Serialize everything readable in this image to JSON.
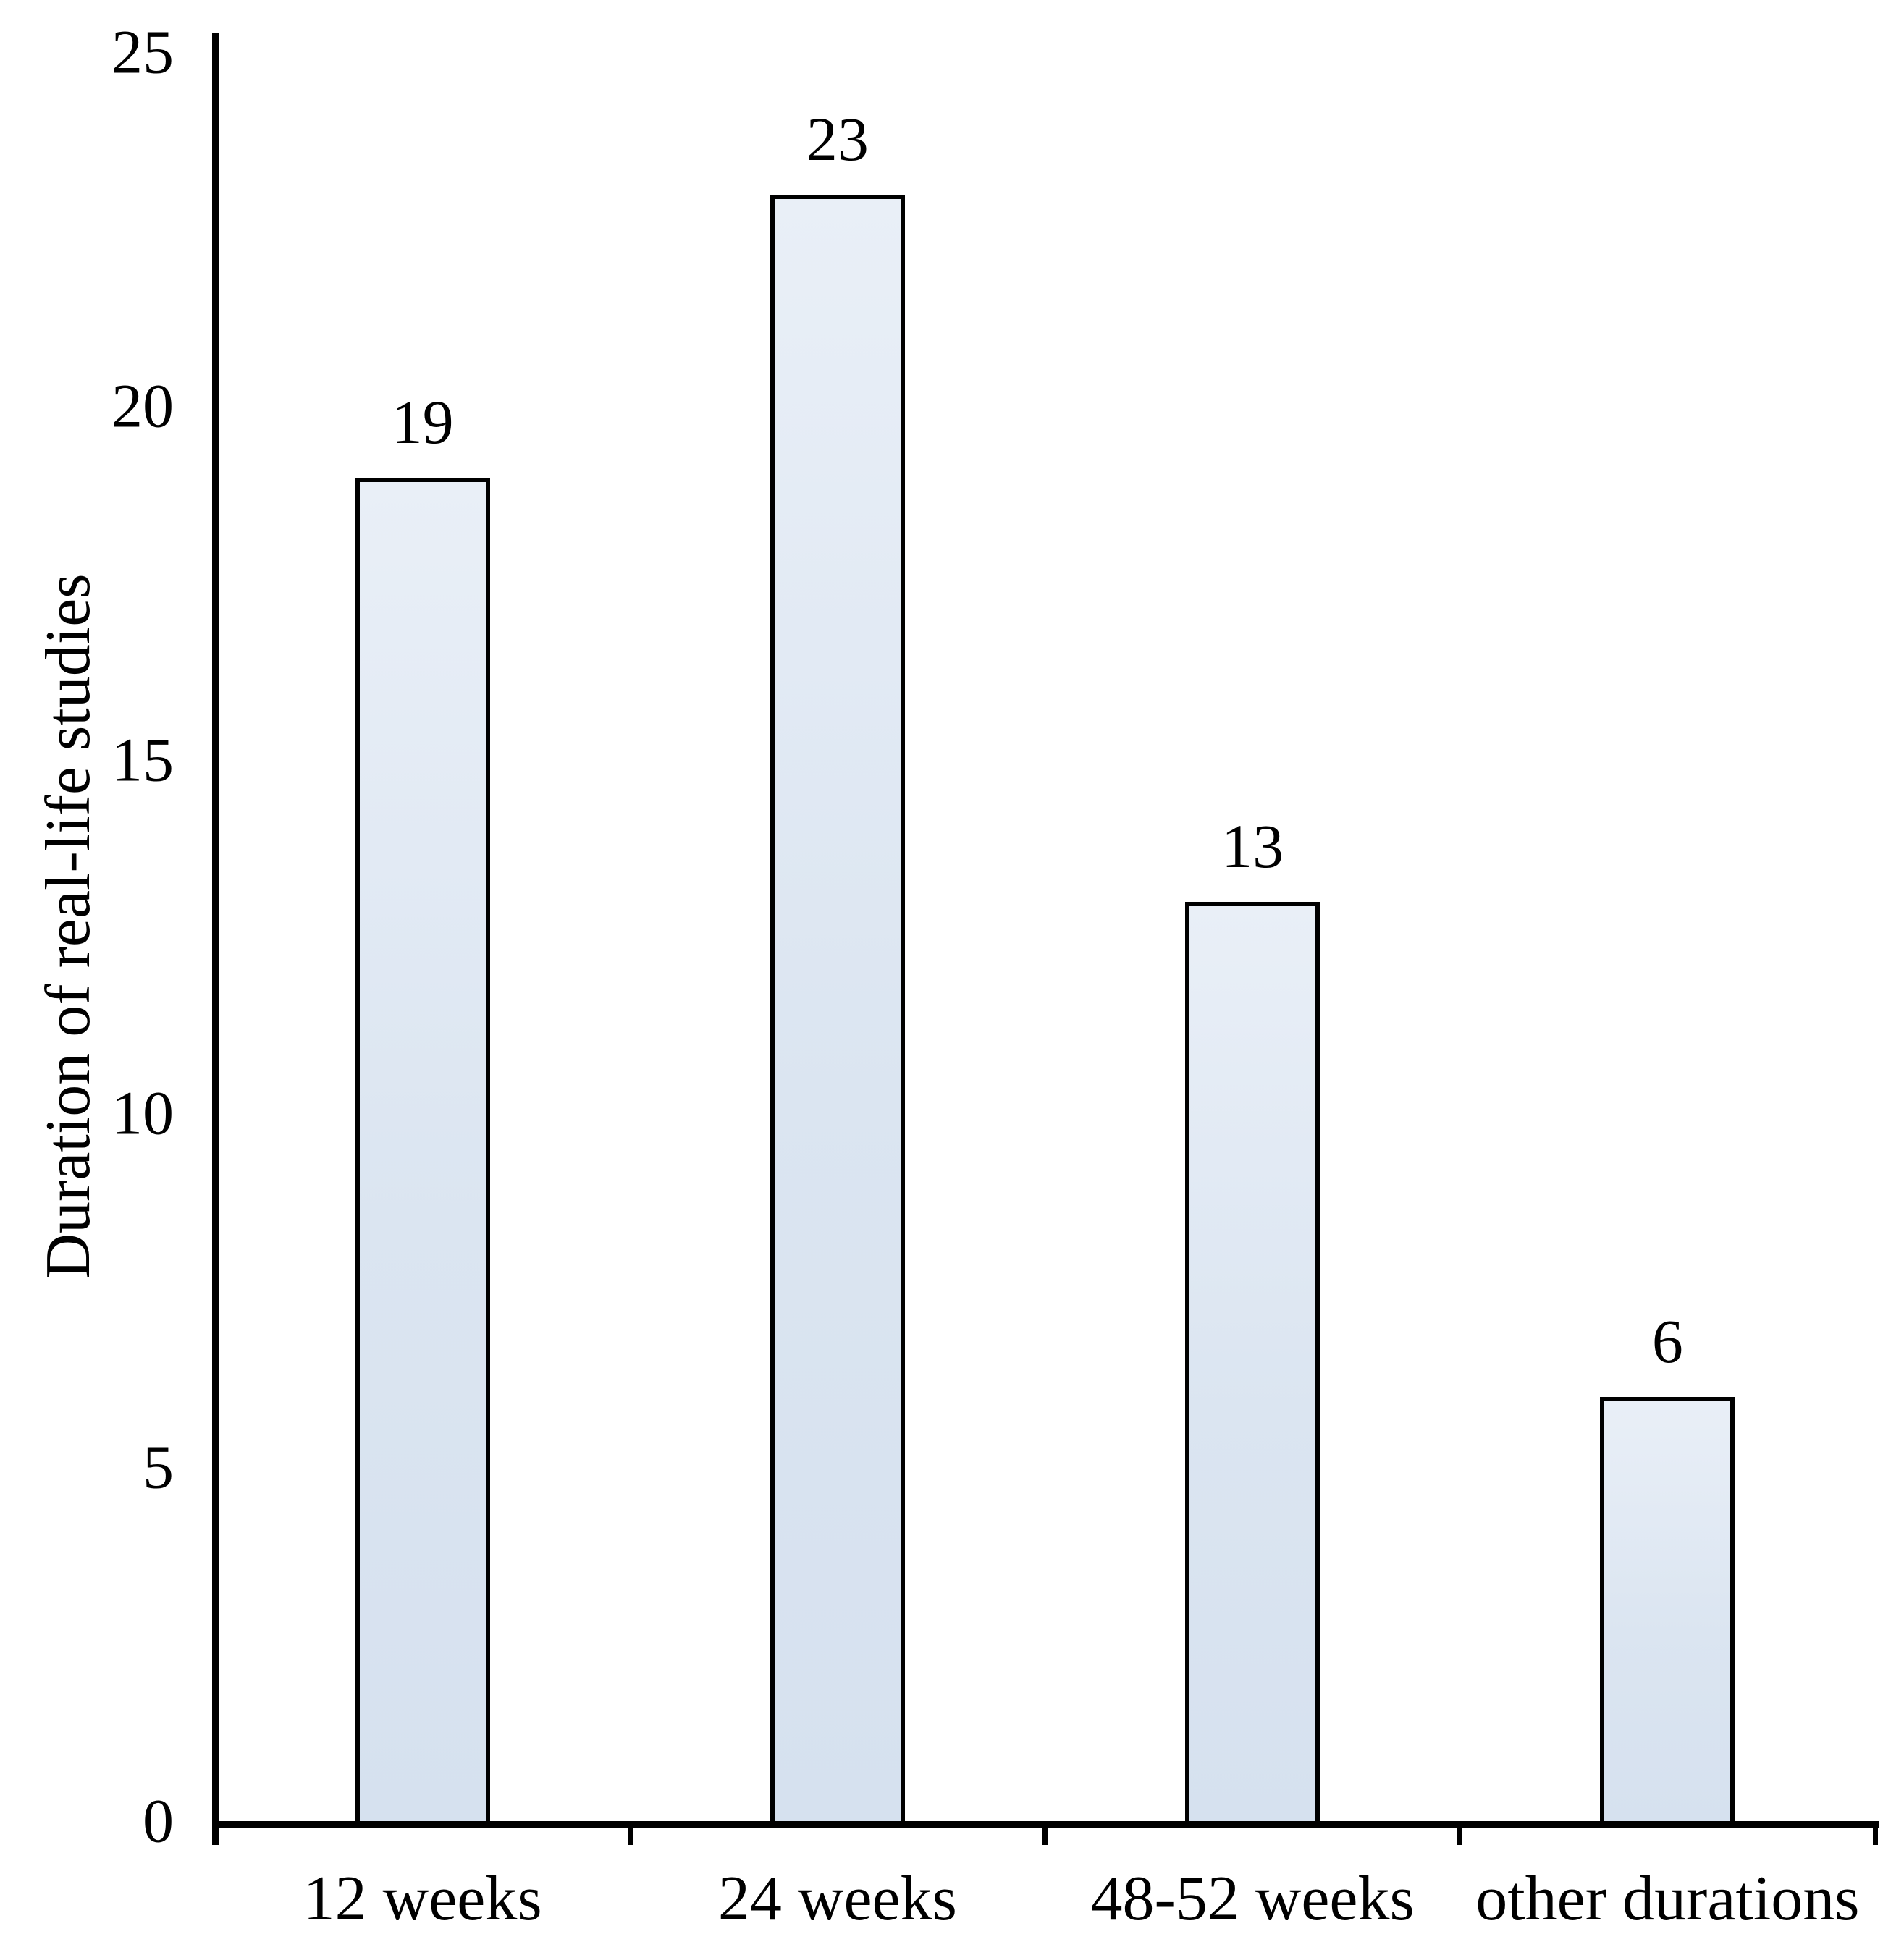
{
  "chart_data": {
    "type": "bar",
    "categories": [
      "12 weeks",
      "24 weeks",
      "48-52 weeks",
      "other durations"
    ],
    "values": [
      19,
      23,
      13,
      6
    ],
    "value_labels": [
      "19",
      "23",
      "13",
      "6"
    ],
    "title": "",
    "xlabel": "",
    "ylabel": "Duration of real-life studies",
    "ylim": [
      0,
      25
    ],
    "yticks": [
      0,
      5,
      10,
      15,
      20,
      25
    ],
    "ytick_labels": [
      "0",
      "5",
      "10",
      "15",
      "20",
      "25"
    ],
    "grid": false,
    "legend": "none",
    "value_labels_shown": true
  },
  "colors": {
    "background": "#ffffff",
    "text": "#000000",
    "axis": "#000000",
    "bar_border": "#000000",
    "bar_fill": "#dbe5f1",
    "bar_fill_top": "#e9eff7",
    "bar_fill_bottom": "#d6e1ef"
  }
}
